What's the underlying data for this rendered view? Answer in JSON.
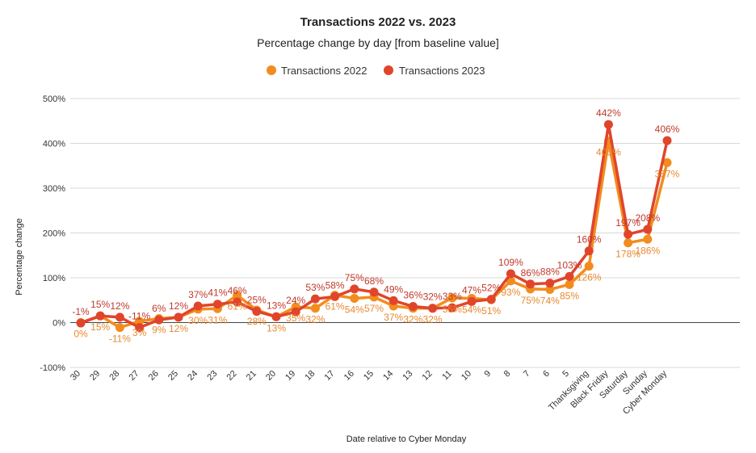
{
  "chart_data": {
    "type": "line",
    "title": "Transactions 2022 vs. 2023",
    "subtitle": "Percentage change by day [from baseline value]",
    "xlabel": "Date relative to Cyber Monday",
    "ylabel": "Percentage change",
    "ylim": [
      -100,
      500
    ],
    "yticks": [
      -100,
      0,
      100,
      200,
      300,
      400,
      500
    ],
    "ytick_labels": [
      "-100%",
      "0%",
      "100%",
      "200%",
      "300%",
      "400%",
      "500%"
    ],
    "grid": true,
    "legend_position": "top",
    "categories": [
      "30",
      "29",
      "28",
      "27",
      "26",
      "25",
      "24",
      "23",
      "22",
      "21",
      "20",
      "19",
      "18",
      "17",
      "16",
      "15",
      "14",
      "13",
      "12",
      "11",
      "10",
      "9",
      "8",
      "7",
      "6",
      "5",
      "Thanksgiving",
      "Black Friday",
      "Saturday",
      "Sunday",
      "Cyber Monday"
    ],
    "series": [
      {
        "name": "Transactions 2022",
        "color": "#f28c1e",
        "label_color": "#e8892f",
        "values": [
          0,
          15,
          -11,
          3,
          9,
          12,
          30,
          31,
          61,
          28,
          13,
          35,
          32,
          61,
          54,
          57,
          37,
          32,
          32,
          55,
          54,
          51,
          93,
          75,
          74,
          85,
          126,
          405,
          178,
          186,
          357
        ],
        "labels": [
          "0%",
          "15%",
          "-11%",
          "3%",
          "9%",
          "12%",
          "30%",
          "31%",
          "61%",
          "28%",
          "13%",
          "35%",
          "32%",
          "61%",
          "54%",
          "57%",
          "37%",
          "32%",
          "32%",
          "55%",
          "54%",
          "51%",
          "93%",
          "75%",
          "74%",
          "85%",
          "126%",
          "405%",
          "178%",
          "186%",
          "357%"
        ]
      },
      {
        "name": "Transactions 2023",
        "color": "#e0452b",
        "label_color": "#c0392b",
        "values": [
          -1,
          15,
          12,
          -11,
          6,
          12,
          37,
          41,
          46,
          25,
          13,
          24,
          53,
          58,
          75,
          68,
          49,
          36,
          32,
          33,
          47,
          52,
          109,
          86,
          88,
          103,
          160,
          442,
          197,
          208,
          406
        ],
        "labels": [
          "-1%",
          "15%",
          "12%",
          "-11%",
          "6%",
          "12%",
          "37%",
          "41%",
          "46%",
          "25%",
          "13%",
          "24%",
          "53%",
          "58%",
          "75%",
          "68%",
          "49%",
          "36%",
          "32%",
          "33%",
          "47%",
          "52%",
          "109%",
          "86%",
          "88%",
          "103%",
          "160%",
          "442%",
          "197%",
          "208%",
          "406%"
        ]
      }
    ]
  }
}
